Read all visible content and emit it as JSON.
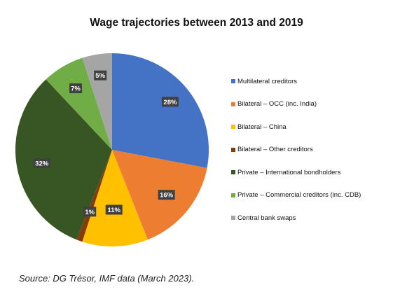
{
  "chart_data": {
    "type": "pie",
    "title": "Wage trajectories between 2013 and 2019",
    "legend_position": "right",
    "slices": [
      {
        "name": "Multilateral creditors",
        "value": 28,
        "label": "28%",
        "color": "#4472C4"
      },
      {
        "name": "Bilateral – OCC (inc. India)",
        "value": 16,
        "label": "16%",
        "color": "#ED7D31"
      },
      {
        "name": "Bilateral – China",
        "value": 11,
        "label": "11%",
        "color": "#FFC000"
      },
      {
        "name": "Bilateral – Other creditors",
        "value": 1,
        "label": "1%",
        "color": "#843C0C"
      },
      {
        "name": "Private – International bondholders",
        "value": 32,
        "label": "32%",
        "color": "#375623"
      },
      {
        "name": "Private – Commercial creditors (inc. CDB)",
        "value": 7,
        "label": "7%",
        "color": "#70AD47"
      },
      {
        "name": "Central bank swaps",
        "value": 5,
        "label": "5%",
        "color": "#A5A5A5"
      }
    ]
  },
  "source": "Source: DG Trésor, IMF data (March 2023)."
}
